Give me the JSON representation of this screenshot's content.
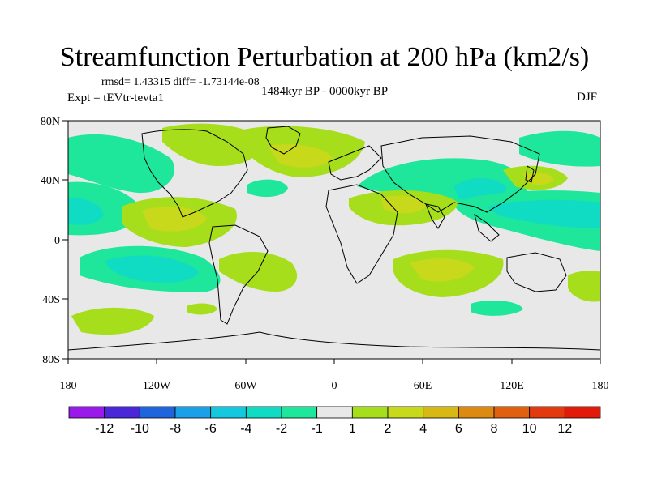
{
  "chart_data": {
    "type": "heatmap",
    "title": "Streamfunction Perturbation at 200 hPa (km2/s)",
    "stats_text": "rmsd= 1.43315  diff= -1.73144e-08",
    "left_label": "Expt = tEVtr-tevta1",
    "center_label": "1484kyr BP - 0000kyr BP",
    "right_label": "DJF",
    "x_ticks": [
      "180",
      "120W",
      "60W",
      "0",
      "60E",
      "120E",
      "180"
    ],
    "y_ticks": [
      "80N",
      "40N",
      "0",
      "40S",
      "80S"
    ],
    "colorbar_labels": [
      "-12",
      "-10",
      "-8",
      "-6",
      "-4",
      "-2",
      "-1",
      "1",
      "2",
      "4",
      "6",
      "8",
      "10",
      "12"
    ],
    "colorbar_colors": [
      "#9a1aec",
      "#4a28d8",
      "#1e64dc",
      "#1aa0e6",
      "#14c8e0",
      "#10dcc4",
      "#1ee69a",
      "#e8e8e8",
      "#a6de1c",
      "#c8d81a",
      "#d8b814",
      "#dc8a12",
      "#e06010",
      "#e23a0e",
      "#e21a0a"
    ],
    "units": "km2/s",
    "level": "200 hPa",
    "season": "DJF"
  }
}
